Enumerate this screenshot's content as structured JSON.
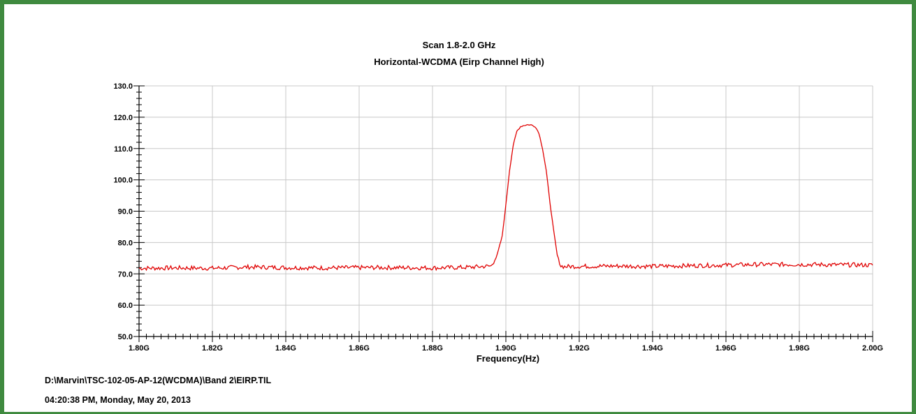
{
  "chart_data": {
    "type": "line",
    "title": "Scan 1.8-2.0 GHz",
    "subtitle": "Horizontal-WCDMA (Eirp Channel High)",
    "xlabel": "Frequency(Hz)",
    "ylabel": "",
    "xlim": [
      1.8,
      2.0
    ],
    "ylim": [
      50.0,
      130.0
    ],
    "x_tick_labels": [
      "1.80G",
      "1.82G",
      "1.84G",
      "1.86G",
      "1.88G",
      "1.90G",
      "1.92G",
      "1.94G",
      "1.96G",
      "1.98G",
      "2.00G"
    ],
    "x_tick_values": [
      1.8,
      1.82,
      1.84,
      1.86,
      1.88,
      1.9,
      1.92,
      1.94,
      1.96,
      1.98,
      2.0
    ],
    "y_tick_labels": [
      "50.0",
      "60.0",
      "70.0",
      "80.0",
      "90.0",
      "100.0",
      "110.0",
      "120.0",
      "130.0"
    ],
    "y_tick_values": [
      50,
      60,
      70,
      80,
      90,
      100,
      110,
      120,
      130
    ],
    "grid": true,
    "line_color": "#e00000",
    "series": [
      {
        "x": [
          1.8,
          1.81,
          1.82,
          1.83,
          1.84,
          1.85,
          1.86,
          1.87,
          1.88,
          1.89,
          1.896,
          1.8975,
          1.899,
          1.9,
          1.901,
          1.902,
          1.903,
          1.904,
          1.905,
          1.906,
          1.907,
          1.908,
          1.909,
          1.91,
          1.911,
          1.912,
          1.913,
          1.914,
          1.915,
          1.916,
          1.92,
          1.93,
          1.94,
          1.95,
          1.96,
          1.97,
          1.98,
          1.99,
          2.0
        ],
        "y": [
          71.8,
          71.9,
          71.8,
          72.2,
          72.0,
          71.9,
          72.0,
          72.0,
          71.9,
          72.1,
          72.5,
          75.5,
          82.0,
          92.0,
          103.0,
          111.0,
          115.5,
          117.0,
          117.4,
          117.6,
          117.5,
          117.0,
          115.0,
          110.0,
          103.0,
          93.0,
          84.0,
          76.0,
          72.5,
          72.3,
          72.4,
          72.5,
          72.4,
          72.6,
          72.8,
          73.0,
          73.0,
          72.9,
          72.8
        ]
      }
    ]
  },
  "footer": {
    "path": "D:\\Marvin\\TSC-102-05-AP-12(WCDMA)\\Band 2\\EIRP.TIL",
    "timestamp": "04:20:38 PM, Monday, May 20, 2013"
  }
}
